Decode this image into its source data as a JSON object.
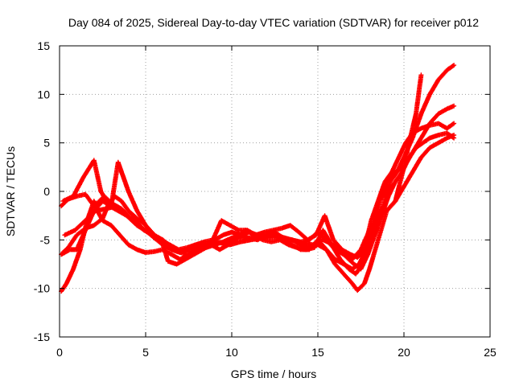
{
  "chart_data": {
    "type": "scatter",
    "title": "Day 084 of 2025, Sidereal Day-to-day VTEC variation (SDTVAR) for receiver p012",
    "xlabel": "GPS time / hours",
    "ylabel": "SDTVAR / TECUs",
    "xlim": [
      0,
      25
    ],
    "ylim": [
      -15,
      15
    ],
    "xticks": [
      "0",
      "5",
      "10",
      "15",
      "20",
      "25"
    ],
    "yticks": [
      "-15",
      "-10",
      "-5",
      "0",
      "5",
      "10",
      "15"
    ],
    "grid": true,
    "marker": "+",
    "colors": {
      "series": "#ff0000",
      "grid": "#a0a0a0",
      "axis": "#000000"
    },
    "series": [
      {
        "x": [
          0.1,
          0.5,
          1.0,
          1.5,
          2.0,
          2.2,
          2.6,
          3.0,
          3.6,
          4.0,
          4.5,
          5.0,
          5.5,
          6.0,
          6.5,
          7.0,
          7.5,
          8.0,
          8.5,
          9.0,
          9.5,
          10.0,
          10.5,
          11.0,
          11.5,
          12.0,
          12.5,
          13.0,
          13.5,
          14.0,
          14.5,
          15.0,
          15.5,
          16.0,
          16.5,
          17.0,
          17.5,
          18.0,
          18.5,
          19.0,
          19.5,
          20.0,
          20.5,
          21.0,
          21.5,
          22.0,
          22.5,
          22.9
        ],
        "y": [
          -1.5,
          -0.8,
          -0.5,
          -0.3,
          -1.5,
          -1.2,
          -0.5,
          -1.2,
          -1.8,
          -2.5,
          -3.5,
          -4.0,
          -4.8,
          -5.5,
          -6.0,
          -6.3,
          -6.0,
          -5.8,
          -5.5,
          -5.2,
          -5.3,
          -5.0,
          -4.8,
          -4.8,
          -4.6,
          -4.8,
          -4.7,
          -4.8,
          -5.0,
          -5.2,
          -5.0,
          -4.2,
          -5.0,
          -6.0,
          -6.5,
          -7.0,
          -6.0,
          -4.0,
          -2.5,
          -2.0,
          -1.0,
          0.5,
          2.0,
          3.5,
          4.5,
          5.0,
          5.5,
          5.8
        ]
      },
      {
        "x": [
          0.2,
          0.5,
          1.0,
          1.5,
          2.0,
          2.5,
          2.8,
          3.2,
          3.6,
          4.0,
          4.5,
          5.0,
          5.5,
          6.0,
          6.5,
          7.0,
          7.5,
          8.0,
          8.5,
          9.0,
          9.5,
          10.0,
          10.5,
          11.0,
          11.5,
          12.0,
          12.5,
          13.0,
          13.5,
          14.0,
          14.5,
          15.0,
          15.5,
          16.0,
          16.5,
          17.0,
          17.4,
          17.8,
          18.2,
          18.6,
          19.0,
          19.5,
          20.0,
          20.5,
          21.0,
          21.5,
          22.0,
          22.5,
          22.9
        ],
        "y": [
          -6.3,
          -5.8,
          -4.5,
          -3.8,
          -3.5,
          -2.8,
          -1.5,
          -0.5,
          -1.0,
          -2.0,
          -2.8,
          -3.5,
          -4.5,
          -5.0,
          -5.8,
          -6.3,
          -6.5,
          -6.0,
          -5.8,
          -5.5,
          -5.2,
          -4.8,
          -4.5,
          -4.2,
          -4.5,
          -4.6,
          -4.5,
          -4.8,
          -5.0,
          -5.5,
          -5.8,
          -5.5,
          -6.0,
          -7.0,
          -7.5,
          -8.0,
          -7.5,
          -6.0,
          -4.0,
          -1.0,
          1.0,
          2.0,
          2.5,
          4.0,
          5.5,
          7.0,
          8.0,
          8.5,
          8.8
        ]
      },
      {
        "x": [
          0.1,
          0.4,
          0.8,
          1.2,
          1.6,
          2.0,
          2.2,
          2.5,
          3.0,
          3.5,
          4.0,
          4.5,
          5.0,
          5.5,
          6.0,
          6.5,
          7.0,
          7.5,
          8.0,
          8.5,
          9.0,
          9.5,
          10.0,
          10.5,
          11.0,
          11.5,
          12.0,
          12.5,
          13.0,
          13.5,
          14.0,
          14.5,
          15.0,
          15.5,
          16.0,
          16.5,
          17.0,
          17.3,
          17.7,
          18.0,
          18.5,
          19.0,
          19.5,
          20.0,
          20.3,
          20.7,
          21.0
        ],
        "y": [
          -10.3,
          -9.5,
          -8.0,
          -6.0,
          -3.0,
          -1.0,
          -2.0,
          -3.0,
          -3.5,
          -4.5,
          -5.5,
          -6.0,
          -6.3,
          -6.2,
          -6.0,
          -6.5,
          -7.0,
          -6.5,
          -6.0,
          -5.5,
          -5.0,
          -4.5,
          -4.2,
          -4.5,
          -4.8,
          -5.0,
          -4.5,
          -4.2,
          -4.8,
          -5.5,
          -6.0,
          -6.0,
          -5.0,
          -6.0,
          -7.5,
          -8.5,
          -9.5,
          -10.2,
          -9.5,
          -8.0,
          -5.0,
          -2.0,
          -1.0,
          2.5,
          5.0,
          8.0,
          12.0
        ]
      },
      {
        "x": [
          0.1,
          0.6,
          1.0,
          1.5,
          2.0,
          2.5,
          3.0,
          3.4,
          3.6,
          4.0,
          4.5,
          5.0,
          5.5,
          6.0,
          6.3,
          6.8,
          7.3,
          7.8,
          8.3,
          8.8,
          9.3,
          9.8,
          10.3,
          10.8,
          11.3,
          11.8,
          12.3,
          12.8,
          13.3,
          13.8,
          14.3,
          14.8,
          15.3,
          15.8,
          16.3,
          16.8,
          17.2,
          17.6,
          18.0,
          18.4,
          18.8,
          19.2,
          19.6,
          20.0,
          20.5,
          21.0,
          21.5,
          22.0,
          22.5,
          22.9
        ],
        "y": [
          -6.5,
          -6.0,
          -6.0,
          -4.0,
          -2.0,
          -1.0,
          -1.5,
          3.0,
          2.0,
          0.0,
          -2.0,
          -3.5,
          -4.5,
          -5.5,
          -7.2,
          -7.5,
          -7.0,
          -6.5,
          -6.0,
          -5.5,
          -6.0,
          -5.5,
          -4.8,
          -4.0,
          -4.5,
          -5.0,
          -5.2,
          -5.0,
          -5.5,
          -5.8,
          -6.0,
          -5.8,
          -4.0,
          -5.5,
          -7.0,
          -8.0,
          -8.5,
          -7.5,
          -5.0,
          -3.0,
          -1.5,
          1.0,
          2.0,
          3.5,
          5.5,
          8.0,
          10.0,
          11.5,
          12.5,
          13.0
        ]
      },
      {
        "x": [
          0.2,
          0.8,
          1.4,
          2.0,
          2.4,
          2.9,
          3.4,
          3.9,
          4.4,
          4.9,
          5.4,
          5.9,
          6.4,
          6.9,
          7.4,
          7.9,
          8.4,
          8.9,
          9.4,
          9.9,
          10.4,
          10.9,
          11.4,
          11.9,
          12.4,
          12.9,
          13.4,
          13.9,
          14.4,
          14.9,
          15.4,
          15.9,
          16.4,
          16.9,
          17.3,
          17.7,
          18.1,
          18.5,
          18.9,
          19.3,
          19.7,
          20.1,
          20.5,
          21.0,
          21.5,
          22.0,
          22.5,
          22.9
        ],
        "y": [
          -1.0,
          -0.5,
          1.5,
          3.2,
          0.0,
          -1.5,
          -2.0,
          -2.5,
          -3.0,
          -4.0,
          -4.5,
          -5.0,
          -5.5,
          -6.0,
          -5.8,
          -5.5,
          -5.2,
          -5.0,
          -3.0,
          -3.5,
          -4.0,
          -4.0,
          -4.5,
          -4.2,
          -4.0,
          -3.8,
          -3.5,
          -4.2,
          -5.0,
          -4.5,
          -2.5,
          -5.0,
          -6.0,
          -6.5,
          -6.8,
          -6.0,
          -3.0,
          -1.0,
          1.0,
          2.0,
          3.5,
          5.0,
          6.0,
          6.5,
          6.8,
          7.0,
          6.5,
          7.0
        ]
      },
      {
        "x": [
          0.3,
          0.9,
          1.5,
          2.1,
          2.7,
          3.3,
          3.9,
          4.5,
          5.1,
          5.7,
          6.3,
          6.9,
          7.5,
          8.1,
          8.7,
          9.3,
          9.9,
          10.5,
          11.1,
          11.7,
          12.3,
          12.9,
          13.5,
          14.1,
          14.7,
          15.3,
          15.9,
          16.5,
          17.1,
          17.5,
          17.9,
          18.3,
          18.7,
          19.1,
          19.5,
          19.9,
          20.3,
          20.7,
          21.1,
          21.5,
          22.0,
          22.5,
          22.9
        ],
        "y": [
          -4.5,
          -4.0,
          -3.0,
          -2.0,
          -1.8,
          -1.5,
          -2.5,
          -3.5,
          -4.2,
          -5.0,
          -5.8,
          -6.2,
          -6.0,
          -5.8,
          -5.5,
          -5.3,
          -5.5,
          -5.2,
          -5.0,
          -4.8,
          -4.5,
          -4.7,
          -5.0,
          -5.3,
          -5.5,
          -5.0,
          -5.5,
          -6.5,
          -7.5,
          -8.0,
          -6.5,
          -4.5,
          -2.5,
          -0.5,
          1.0,
          2.0,
          3.5,
          4.5,
          5.0,
          5.5,
          5.8,
          6.0,
          5.5
        ]
      }
    ]
  }
}
